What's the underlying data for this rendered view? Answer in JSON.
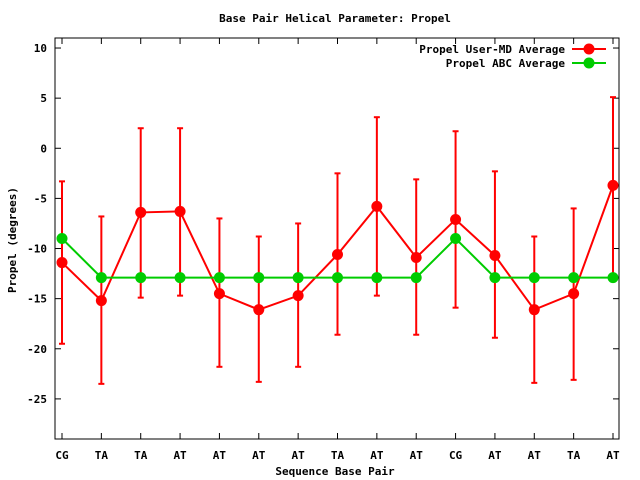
{
  "chart_data": {
    "type": "line",
    "title": "Base Pair Helical Parameter: Propel",
    "xlabel": "Sequence Base Pair",
    "ylabel": "Propel (degrees)",
    "categories": [
      "CG",
      "TA",
      "TA",
      "AT",
      "AT",
      "AT",
      "AT",
      "TA",
      "AT",
      "AT",
      "CG",
      "AT",
      "AT",
      "TA",
      "AT"
    ],
    "ylim": [
      -29,
      11
    ],
    "yticks": [
      10,
      5,
      0,
      -5,
      -10,
      -15,
      -20,
      -25
    ],
    "grid": false,
    "legend_position": "top-right",
    "series": [
      {
        "name": "Propel User-MD Average",
        "color": "#ff0000",
        "values": [
          -11.4,
          -15.2,
          -6.4,
          -6.3,
          -14.5,
          -16.1,
          -14.7,
          -10.6,
          -5.8,
          -10.9,
          -7.1,
          -10.7,
          -16.1,
          -14.5,
          -3.7
        ],
        "error_low": [
          -19.5,
          -23.5,
          -14.9,
          -14.7,
          -21.8,
          -23.3,
          -21.8,
          -18.6,
          -14.7,
          -18.6,
          -15.9,
          -18.9,
          -23.4,
          -23.1,
          -12.9
        ],
        "error_high": [
          -3.3,
          -6.8,
          2.0,
          2.0,
          -7.0,
          -8.8,
          -7.5,
          -2.5,
          3.1,
          -3.1,
          1.7,
          -2.3,
          -8.8,
          -6.0,
          5.1
        ]
      },
      {
        "name": "Propel ABC Average",
        "color": "#00cc00",
        "values": [
          -9.0,
          -12.9,
          -12.9,
          -12.9,
          -12.9,
          -12.9,
          -12.9,
          -12.9,
          -12.9,
          -12.9,
          -9.0,
          -12.9,
          -12.9,
          -12.9,
          -12.9
        ]
      }
    ]
  }
}
